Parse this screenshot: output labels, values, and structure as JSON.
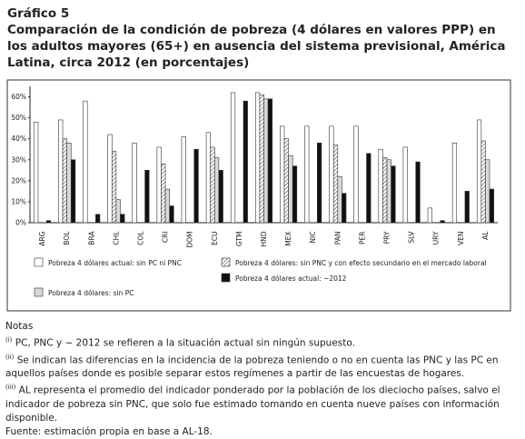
{
  "chart_data": {
    "type": "bar",
    "label": "Gráfico 5",
    "title": "Comparación de la condición de pobreza (4 dólares en valores PPP) en los adultos mayores (65+) en ausencia del sistema previsional, América Latina, circa 2012  (en porcentajes)",
    "categories": [
      "ARG",
      "BOL",
      "BRA",
      "CHL",
      "COL",
      "CRI",
      "DOM",
      "ECU",
      "GTM",
      "HND",
      "MEX",
      "NIC",
      "PAN",
      "PER",
      "PRY",
      "SLV",
      "URY",
      "VEN",
      "AL"
    ],
    "series": [
      {
        "name": "Pobreza 4 dólares actual: sin PC ni PNC",
        "color": "#ffffff",
        "values": [
          48,
          49,
          58,
          42,
          38,
          36,
          41,
          43,
          62,
          62,
          46,
          46,
          46,
          46,
          35,
          36,
          7,
          38,
          49
        ]
      },
      {
        "name": "Pobreza 4 dólares: sin PNC y con efecto secundario en el mercado laboral",
        "color": "#ffffff",
        "pattern": "diagonal",
        "values": [
          null,
          40,
          null,
          34,
          null,
          28,
          null,
          36,
          null,
          61,
          40,
          null,
          37,
          null,
          31,
          null,
          null,
          null,
          39
        ]
      },
      {
        "name": "Pobreza 4 dólares: sin PC",
        "color": "#d9d9d9",
        "values": [
          null,
          38,
          null,
          11,
          null,
          16,
          null,
          31,
          null,
          59,
          32,
          null,
          22,
          null,
          30,
          null,
          null,
          null,
          30
        ]
      },
      {
        "name": "Pobreza 4 dólares actual: ~2012",
        "color": "#111111",
        "values": [
          1,
          30,
          4,
          4,
          25,
          8,
          35,
          25,
          58,
          59,
          27,
          38,
          14,
          33,
          27,
          29,
          1,
          15,
          16
        ]
      }
    ],
    "ylim": [
      0,
      65
    ],
    "yticks": [
      {
        "value": 0,
        "label": "0%"
      },
      {
        "value": 10,
        "label": "10%"
      },
      {
        "value": 20,
        "label": "20%"
      },
      {
        "value": 30,
        "label": "30%"
      },
      {
        "value": 40,
        "label": "40%"
      },
      {
        "value": 50,
        "label": "50%"
      },
      {
        "value": 60,
        "label": "60%"
      }
    ]
  },
  "notes": {
    "title": "Notas",
    "items": [
      {
        "marker": "(i)",
        "text": "PC, PNC y ~ 2012 se refieren a la situación actual sin ningún supuesto."
      },
      {
        "marker": "(ii)",
        "text": "Se indican las diferencias en la incidencia de la pobreza teniendo o no en cuenta las PNC y las PC en aquellos países donde es posible separar estos regímenes a partir de las encuestas de hogares."
      },
      {
        "marker": "(iii)",
        "text": "AL representa el promedio del indicador ponderado por la población de los dieciocho países, salvo el indicador de pobreza sin PNC, que solo fue estimado tomando en cuenta nueve países con información disponible."
      }
    ],
    "source": "Fuente: estimación propia en base a AL-18."
  }
}
